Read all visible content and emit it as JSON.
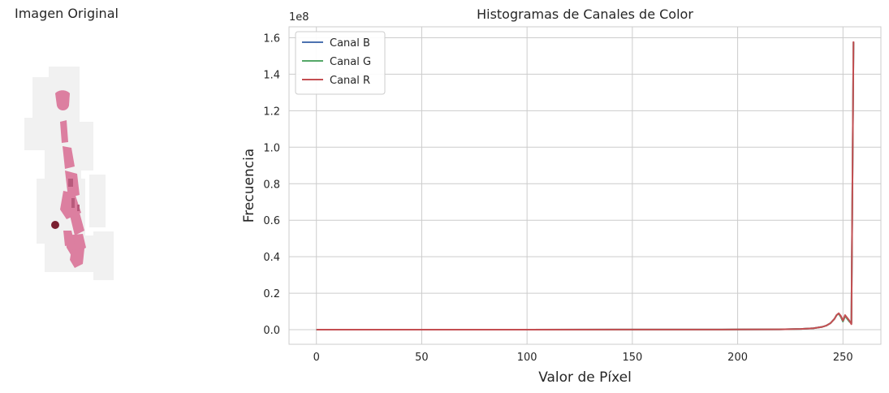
{
  "image_panel": {
    "title": "Imagen Original"
  },
  "chart_data": {
    "type": "line",
    "title": "Histogramas de Canales de Color",
    "xlabel": "Valor de Píxel",
    "ylabel": "Frecuencia",
    "y_multiplier": "1e8",
    "xlim": [
      -13,
      268
    ],
    "ylim": [
      -0.08,
      1.66
    ],
    "x_ticks": [
      "0",
      "50",
      "100",
      "150",
      "200",
      "250"
    ],
    "y_ticks": [
      "0.0",
      "0.2",
      "0.4",
      "0.6",
      "0.8",
      "1.0",
      "1.2",
      "1.4",
      "1.6"
    ],
    "grid": true,
    "legend_position": "upper-left",
    "series": [
      {
        "name": "Canal B",
        "color": "#4c72b0",
        "x": [
          0,
          100,
          200,
          220,
          230,
          236,
          240,
          242,
          244,
          246,
          247,
          248,
          249,
          250,
          251,
          252,
          253,
          254,
          255
        ],
        "y": [
          0,
          0,
          0.001,
          0.002,
          0.004,
          0.008,
          0.015,
          0.022,
          0.035,
          0.06,
          0.08,
          0.088,
          0.07,
          0.045,
          0.075,
          0.06,
          0.045,
          0.035,
          1.575
        ]
      },
      {
        "name": "Canal G",
        "color": "#55a868",
        "x": [
          0,
          100,
          200,
          220,
          230,
          236,
          240,
          242,
          244,
          246,
          247,
          248,
          249,
          250,
          251,
          252,
          253,
          254,
          255
        ],
        "y": [
          0,
          0,
          0.001,
          0.002,
          0.004,
          0.008,
          0.015,
          0.022,
          0.035,
          0.06,
          0.08,
          0.088,
          0.07,
          0.045,
          0.075,
          0.06,
          0.045,
          0.035,
          1.575
        ]
      },
      {
        "name": "Canal R",
        "color": "#c44e52",
        "x": [
          0,
          100,
          200,
          220,
          230,
          236,
          240,
          242,
          244,
          246,
          247,
          248,
          249,
          250,
          251,
          252,
          253,
          254,
          255
        ],
        "y": [
          0,
          0,
          0.001,
          0.002,
          0.004,
          0.008,
          0.015,
          0.022,
          0.035,
          0.06,
          0.08,
          0.09,
          0.075,
          0.05,
          0.08,
          0.065,
          0.05,
          0.03,
          1.58
        ]
      }
    ]
  }
}
